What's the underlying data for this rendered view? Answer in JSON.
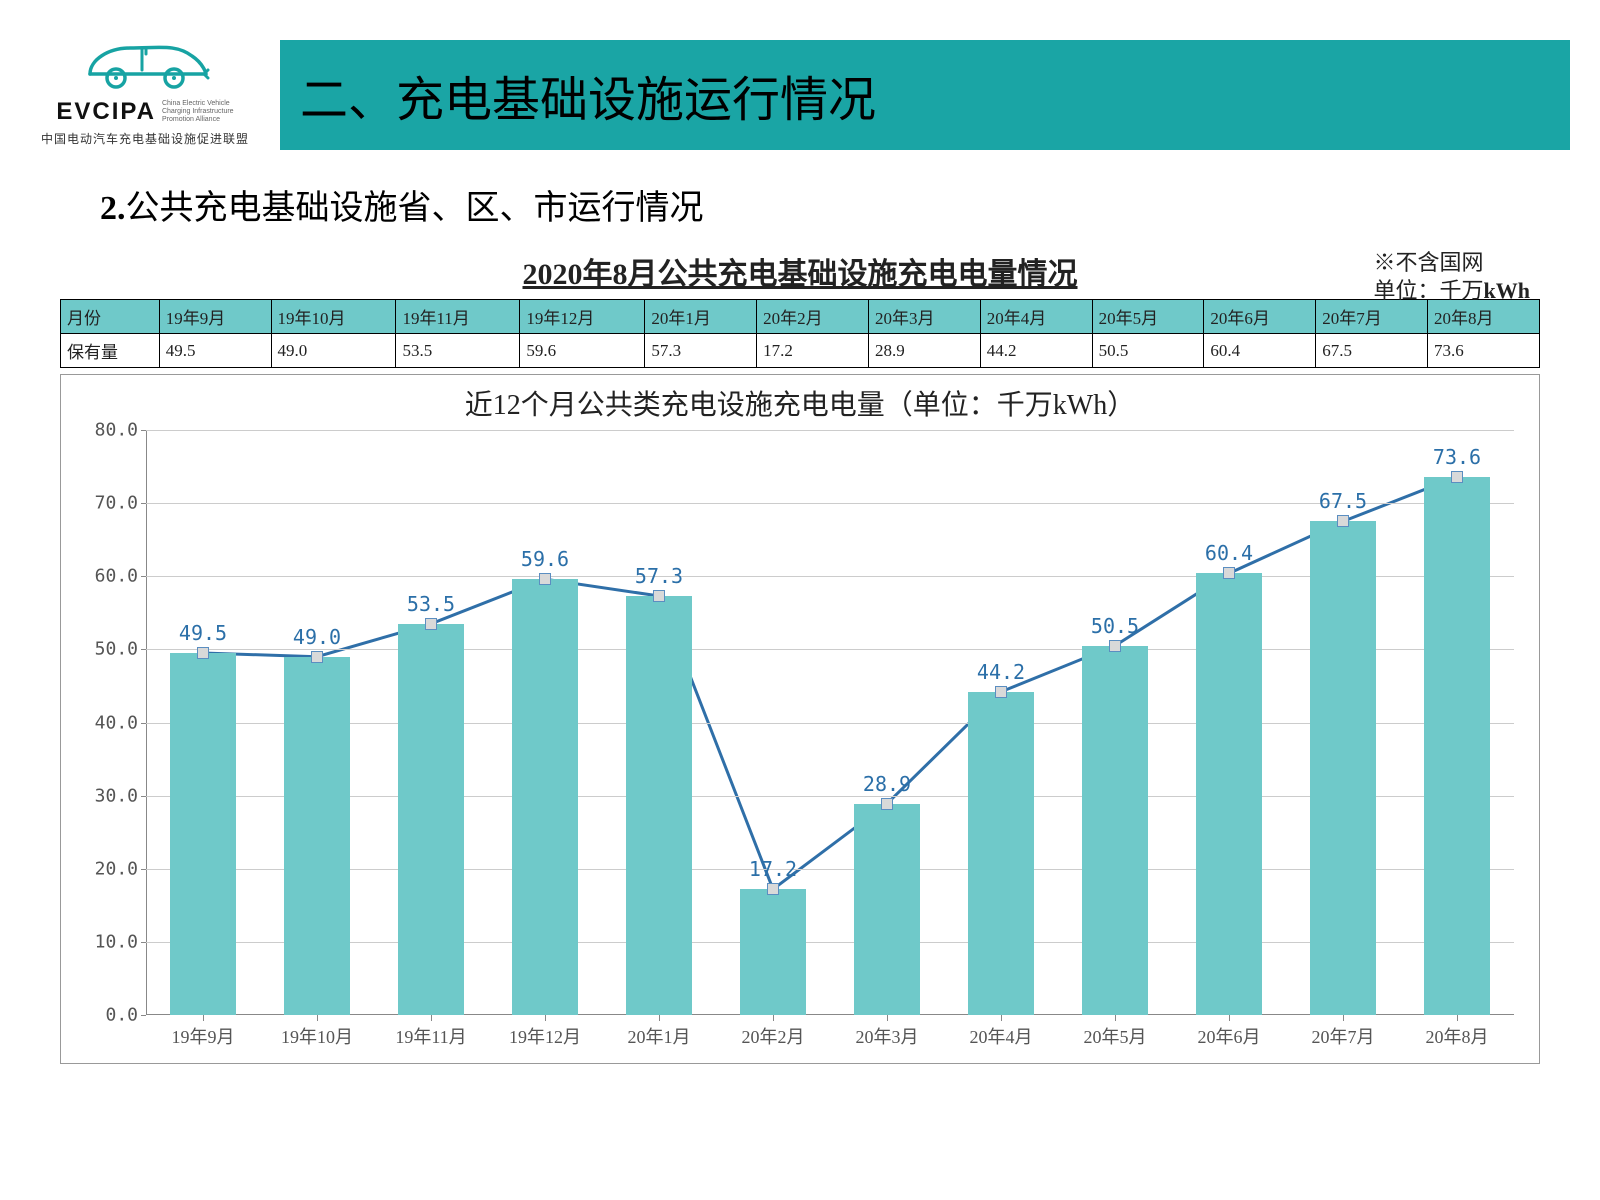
{
  "logo": {
    "brand": "EVCIPA",
    "tagline_en": "China Electric Vehicle\nCharging Infrastructure\nPromotion Alliance",
    "tagline_zh": "中国电动汽车充电基础设施促进联盟",
    "icon_color": "#17a3a3"
  },
  "title_bar": {
    "text": "二、充电基础设施运行情况",
    "bg_color": "#1aa5a5",
    "font_size": 48
  },
  "subheading": {
    "prefix_bold": "2.",
    "text": "公共充电基础设施省、区、市运行情况",
    "font_size": 34
  },
  "chart_heading": {
    "title": "2020年8月公共充电基础设施充电电量情况",
    "note_top": "※不含国网",
    "note_unit_prefix": "单位：千万",
    "note_unit_bold": "kWh"
  },
  "table": {
    "row1_label": "月份",
    "row2_label": "保有量",
    "months": [
      "19年9月",
      "19年10月",
      "19年11月",
      "19年12月",
      "20年1月",
      "20年2月",
      "20年3月",
      "20年4月",
      "20年5月",
      "20年6月",
      "20年7月",
      "20年8月"
    ],
    "values": [
      "49.5",
      "49.0",
      "53.5",
      "59.6",
      "57.3",
      "17.2",
      "28.9",
      "44.2",
      "50.5",
      "60.4",
      "67.5",
      "73.6"
    ],
    "header_bg": "#6fc9c9",
    "border_color": "#000000"
  },
  "chart": {
    "type": "bar+line",
    "inner_title": "近12个月公共类充电设施充电电量（单位：千万kWh）",
    "categories": [
      "19年9月",
      "19年10月",
      "19年11月",
      "19年12月",
      "20年1月",
      "20年2月",
      "20年3月",
      "20年4月",
      "20年5月",
      "20年6月",
      "20年7月",
      "20年8月"
    ],
    "values": [
      49.5,
      49.0,
      53.5,
      59.6,
      57.3,
      17.2,
      28.9,
      44.2,
      50.5,
      60.4,
      67.5,
      73.6
    ],
    "value_labels": [
      "49.5",
      "49.0",
      "53.5",
      "59.6",
      "57.3",
      "17.2",
      "28.9",
      "44.2",
      "50.5",
      "60.4",
      "67.5",
      "73.6"
    ],
    "ylim": [
      0,
      80
    ],
    "ytick_step": 10,
    "ytick_labels": [
      "0.0",
      "10.0",
      "20.0",
      "30.0",
      "40.0",
      "50.0",
      "60.0",
      "70.0",
      "80.0"
    ],
    "bar_color": "#6fc9c9",
    "line_color": "#2f6fa8",
    "line_width": 3,
    "marker_fill": "#d9d9d9",
    "marker_border": "#5b8ec1",
    "marker_size": 12,
    "grid_color": "#cccccc",
    "axis_color": "#888888",
    "data_label_color": "#2b6fa8",
    "data_label_fontsize": 20,
    "axis_label_fontsize": 18,
    "inner_title_fontsize": 28,
    "bar_width_ratio": 0.58,
    "background_color": "#ffffff"
  }
}
